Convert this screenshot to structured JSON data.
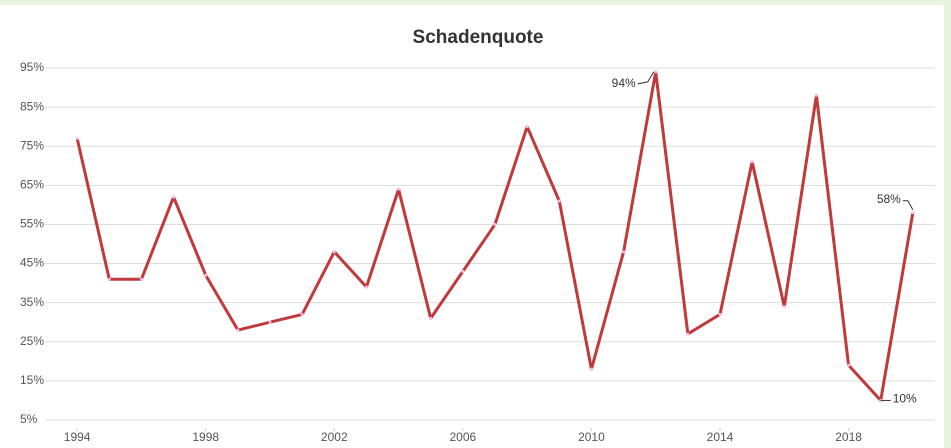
{
  "chart_data": {
    "type": "line",
    "title": "Schadenquote",
    "x": [
      1994,
      1995,
      1996,
      1997,
      1998,
      1999,
      2000,
      2001,
      2002,
      2003,
      2004,
      2005,
      2006,
      2007,
      2008,
      2009,
      2010,
      2011,
      2012,
      2013,
      2014,
      2015,
      2016,
      2017,
      2018,
      2019,
      2020
    ],
    "series": [
      {
        "name": "Schadenquote",
        "color": "#c0393b",
        "values": [
          77,
          41,
          41,
          62,
          42,
          28,
          30,
          32,
          48,
          39,
          64,
          31,
          43,
          55,
          80,
          61,
          18,
          48,
          94,
          27,
          32,
          71,
          34,
          88,
          19,
          10,
          58
        ],
        "value_labels": [
          null,
          null,
          null,
          null,
          null,
          null,
          null,
          null,
          null,
          null,
          null,
          null,
          null,
          null,
          null,
          null,
          null,
          null,
          "94%",
          null,
          null,
          null,
          null,
          null,
          null,
          "10%",
          "58%"
        ]
      }
    ],
    "xlim": [
      1993,
      2021
    ],
    "xticks": [
      1994,
      1998,
      2002,
      2006,
      2010,
      2014,
      2018
    ],
    "ylim": [
      5,
      95
    ],
    "yticks": [
      {
        "value": 5,
        "label": "5%"
      },
      {
        "value": 15,
        "label": "15%"
      },
      {
        "value": 25,
        "label": "25%"
      },
      {
        "value": 35,
        "label": "35%"
      },
      {
        "value": 45,
        "label": "45%"
      },
      {
        "value": 55,
        "label": "55%"
      },
      {
        "value": 65,
        "label": "65%"
      },
      {
        "value": 75,
        "label": "75%"
      },
      {
        "value": 85,
        "label": "85%"
      },
      {
        "value": 95,
        "label": "95%"
      }
    ],
    "grid": true
  }
}
